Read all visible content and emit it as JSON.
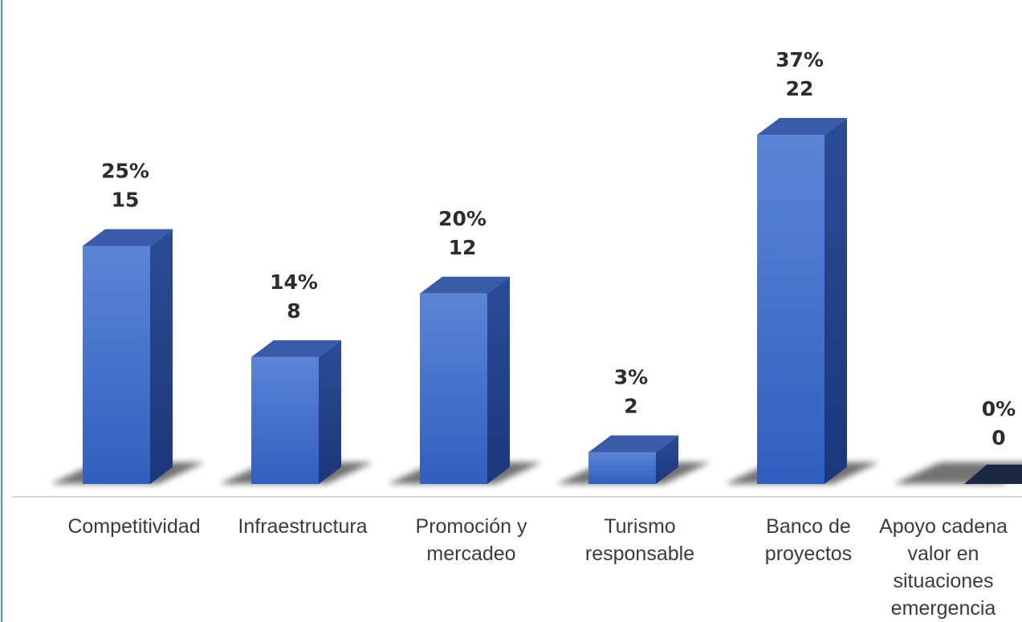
{
  "chart_data": {
    "type": "bar",
    "categories": [
      [
        "Competitividad"
      ],
      [
        "Infraestructura"
      ],
      [
        "Promoción y",
        "mercadeo"
      ],
      [
        "Turismo",
        "responsable"
      ],
      [
        "Banco de",
        "proyectos"
      ],
      [
        "Apoyo cadena",
        "valor en",
        "situaciones",
        "emergencia"
      ]
    ],
    "values": [
      15,
      8,
      12,
      2,
      22,
      0
    ],
    "percent_labels": [
      "25%",
      "14%",
      "20%",
      "3%",
      "37%",
      "0%"
    ],
    "value_labels": [
      "15",
      "8",
      "12",
      "2",
      "22",
      "0"
    ],
    "title": "",
    "xlabel": "",
    "ylabel": "",
    "ylim": [
      0,
      25
    ],
    "grid": false,
    "legend": "none",
    "bar_style": "3d-column",
    "colors": {
      "bar_front_top": "#5b85d6",
      "bar_front_bottom": "#2f5fbf",
      "bar_side": "#213f86",
      "bar_top": "#3a5ba8",
      "zero_bar": "#1c2744",
      "axis": "#d9d9d9",
      "frame_left": "#4f8fe0"
    }
  }
}
